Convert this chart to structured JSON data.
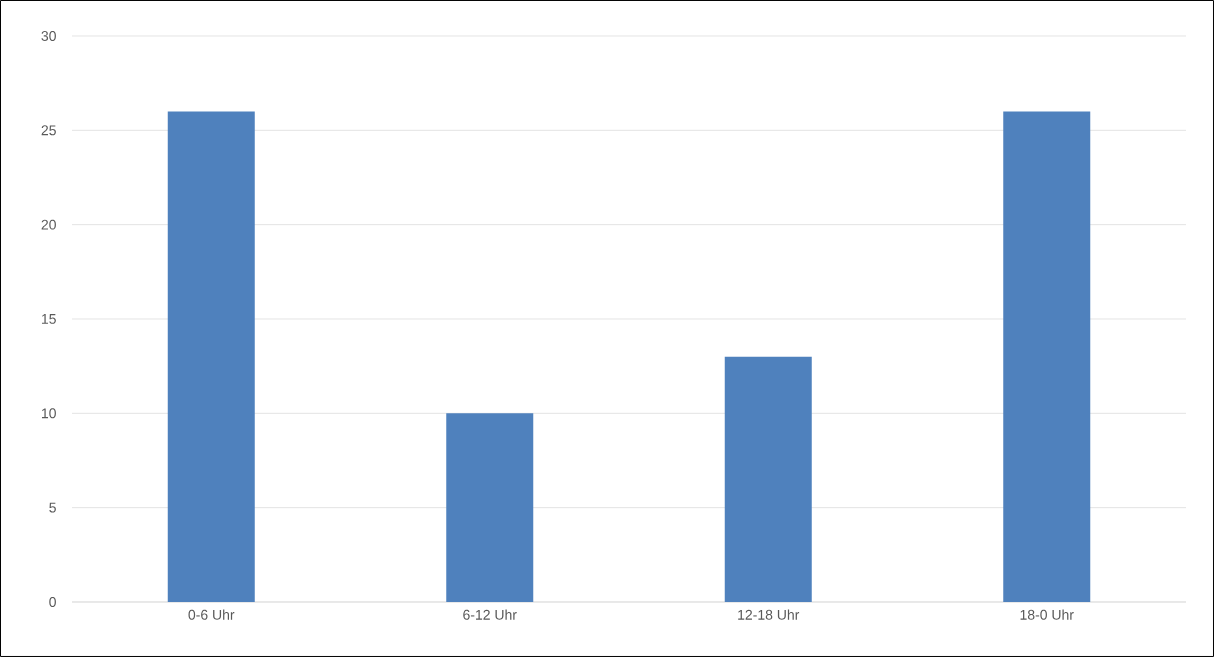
{
  "chart_data": {
    "type": "bar",
    "categories": [
      "0-6 Uhr",
      "6-12 Uhr",
      "12-18 Uhr",
      "18-0 Uhr"
    ],
    "values": [
      26,
      10,
      13,
      26
    ],
    "color": "#4f81bd",
    "ylim": [
      0,
      30
    ],
    "yticks": [
      0,
      5,
      10,
      15,
      20,
      25,
      30
    ],
    "grid": "y"
  }
}
